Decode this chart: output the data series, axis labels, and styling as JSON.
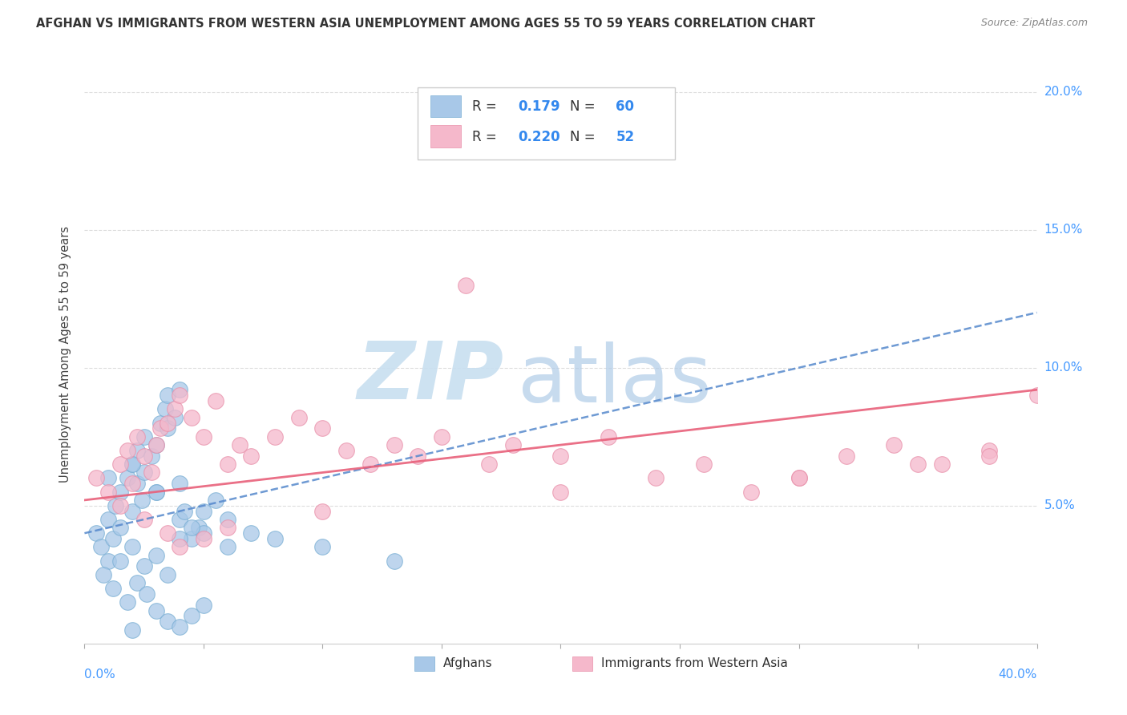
{
  "title": "AFGHAN VS IMMIGRANTS FROM WESTERN ASIA UNEMPLOYMENT AMONG AGES 55 TO 59 YEARS CORRELATION CHART",
  "source": "Source: ZipAtlas.com",
  "ylabel": "Unemployment Among Ages 55 to 59 years",
  "series": [
    {
      "label": "Afghans",
      "R": "0.179",
      "N": "60",
      "dot_color": "#a8c8e8",
      "dot_edge_color": "#7aafd4",
      "line_color": "#5588cc",
      "line_style": "--"
    },
    {
      "label": "Immigrants from Western Asia",
      "R": "0.220",
      "N": "52",
      "dot_color": "#f5b8cb",
      "dot_edge_color": "#e890aa",
      "line_color": "#e8607a",
      "line_style": "-"
    }
  ],
  "xlim": [
    0.0,
    0.4
  ],
  "ylim": [
    0.0,
    0.21
  ],
  "yticks": [
    0.05,
    0.1,
    0.15,
    0.2
  ],
  "ytick_labels": [
    "5.0%",
    "10.0%",
    "15.0%",
    "20.0%"
  ],
  "xticks": [
    0.0,
    0.05,
    0.1,
    0.15,
    0.2,
    0.25,
    0.3,
    0.35,
    0.4
  ],
  "background_color": "#ffffff",
  "grid_color": "#dddddd",
  "watermark_zip_color": "#c8dff0",
  "watermark_atlas_color": "#b0cce8",
  "title_color": "#333333",
  "source_color": "#888888",
  "ylabel_color": "#444444",
  "tick_label_color": "#4499ff",
  "legend_text_color": "#333333",
  "R_N_color": "#3388ee",
  "afghan_x": [
    0.005,
    0.007,
    0.01,
    0.01,
    0.012,
    0.013,
    0.015,
    0.015,
    0.018,
    0.02,
    0.02,
    0.022,
    0.022,
    0.024,
    0.025,
    0.025,
    0.028,
    0.03,
    0.03,
    0.032,
    0.034,
    0.035,
    0.035,
    0.038,
    0.04,
    0.04,
    0.042,
    0.045,
    0.048,
    0.05,
    0.008,
    0.012,
    0.018,
    0.022,
    0.026,
    0.03,
    0.035,
    0.04,
    0.045,
    0.05,
    0.015,
    0.02,
    0.025,
    0.03,
    0.035,
    0.04,
    0.045,
    0.05,
    0.055,
    0.06,
    0.01,
    0.02,
    0.03,
    0.04,
    0.06,
    0.07,
    0.08,
    0.1,
    0.13,
    0.02
  ],
  "afghan_y": [
    0.04,
    0.035,
    0.03,
    0.045,
    0.038,
    0.05,
    0.055,
    0.042,
    0.06,
    0.048,
    0.065,
    0.07,
    0.058,
    0.052,
    0.075,
    0.062,
    0.068,
    0.055,
    0.072,
    0.08,
    0.085,
    0.078,
    0.09,
    0.082,
    0.092,
    0.045,
    0.048,
    0.038,
    0.042,
    0.04,
    0.025,
    0.02,
    0.015,
    0.022,
    0.018,
    0.012,
    0.008,
    0.006,
    0.01,
    0.014,
    0.03,
    0.035,
    0.028,
    0.032,
    0.025,
    0.038,
    0.042,
    0.048,
    0.052,
    0.035,
    0.06,
    0.065,
    0.055,
    0.058,
    0.045,
    0.04,
    0.038,
    0.035,
    0.03,
    0.005
  ],
  "western_x": [
    0.005,
    0.01,
    0.015,
    0.018,
    0.02,
    0.022,
    0.025,
    0.028,
    0.03,
    0.032,
    0.035,
    0.038,
    0.04,
    0.045,
    0.05,
    0.055,
    0.06,
    0.065,
    0.07,
    0.08,
    0.09,
    0.1,
    0.11,
    0.12,
    0.13,
    0.14,
    0.15,
    0.16,
    0.17,
    0.18,
    0.2,
    0.22,
    0.24,
    0.26,
    0.28,
    0.3,
    0.32,
    0.34,
    0.36,
    0.38,
    0.4,
    0.015,
    0.025,
    0.035,
    0.04,
    0.05,
    0.06,
    0.1,
    0.2,
    0.3,
    0.35,
    0.38
  ],
  "western_y": [
    0.06,
    0.055,
    0.065,
    0.07,
    0.058,
    0.075,
    0.068,
    0.062,
    0.072,
    0.078,
    0.08,
    0.085,
    0.09,
    0.082,
    0.075,
    0.088,
    0.065,
    0.072,
    0.068,
    0.075,
    0.082,
    0.078,
    0.07,
    0.065,
    0.072,
    0.068,
    0.075,
    0.13,
    0.065,
    0.072,
    0.068,
    0.075,
    0.06,
    0.065,
    0.055,
    0.06,
    0.068,
    0.072,
    0.065,
    0.07,
    0.09,
    0.05,
    0.045,
    0.04,
    0.035,
    0.038,
    0.042,
    0.048,
    0.055,
    0.06,
    0.065,
    0.068
  ],
  "trend_afghan_x0": 0.0,
  "trend_afghan_y0": 0.04,
  "trend_afghan_x1": 0.4,
  "trend_afghan_y1": 0.12,
  "trend_western_x0": 0.0,
  "trend_western_y0": 0.052,
  "trend_western_x1": 0.4,
  "trend_western_y1": 0.092
}
